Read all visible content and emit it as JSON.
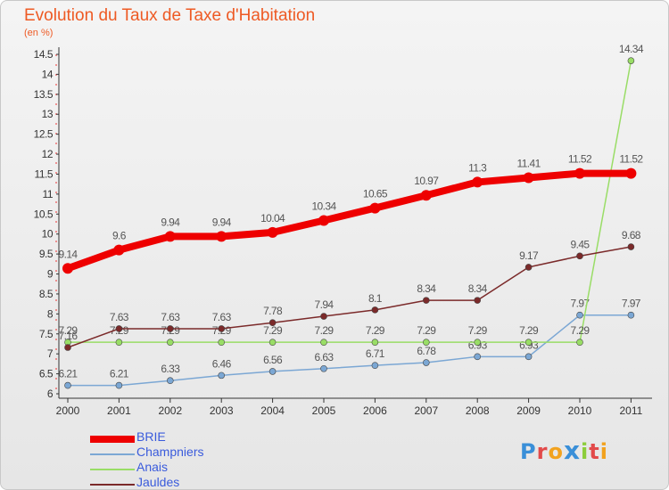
{
  "header": {
    "title": "Evolution du Taux de Taxe d'Habitation",
    "subtitle": "(en %)"
  },
  "chart_data": {
    "type": "line",
    "title": "Evolution du Taux de Taxe d'Habitation",
    "ylabel": "(en %)",
    "xlabel": "",
    "x": [
      "2000",
      "2001",
      "2002",
      "2003",
      "2004",
      "2005",
      "2006",
      "2007",
      "2008",
      "2009",
      "2010",
      "2011"
    ],
    "ylim": [
      6,
      14.5
    ],
    "yticks": [
      "6",
      "6.5",
      "7",
      "7.5",
      "8",
      "8.5",
      "9",
      "9.5",
      "10",
      "10.5",
      "11",
      "11.5",
      "12",
      "12.5",
      "13",
      "13.5",
      "14",
      "14.5"
    ],
    "grid": false,
    "legend": "bottom-left",
    "series": [
      {
        "name": "BRIE",
        "color": "#ee0000",
        "values": [
          9.14,
          9.6,
          9.94,
          9.94,
          10.04,
          10.34,
          10.65,
          10.97,
          11.3,
          11.41,
          11.52,
          11.52
        ],
        "labels": [
          "9.14",
          "9.6",
          "9.94",
          "9.94",
          "10.04",
          "10.34",
          "10.65",
          "10.97",
          "11.3",
          "11.41",
          "11.52",
          "11.52"
        ]
      },
      {
        "name": "Champniers",
        "color": "#7ba7d4",
        "values": [
          6.21,
          6.21,
          6.33,
          6.46,
          6.56,
          6.63,
          6.71,
          6.78,
          6.93,
          6.93,
          7.97,
          7.97
        ],
        "labels": [
          "6.21",
          "6.21",
          "6.33",
          "6.46",
          "6.56",
          "6.63",
          "6.71",
          "6.78",
          "6.93",
          "6.93",
          "7.97",
          "7.97"
        ]
      },
      {
        "name": "Anais",
        "color": "#99dd66",
        "values": [
          7.29,
          7.29,
          7.29,
          7.29,
          7.29,
          7.29,
          7.29,
          7.29,
          7.29,
          7.29,
          7.29,
          14.34
        ],
        "labels": [
          "7.29",
          "7.29",
          "7.29",
          "7.29",
          "7.29",
          "7.29",
          "7.29",
          "7.29",
          "7.29",
          "7.29",
          "7.29",
          "14.34"
        ]
      },
      {
        "name": "Jauldes",
        "color": "#7b2a2a",
        "values": [
          7.16,
          7.63,
          7.63,
          7.63,
          7.78,
          7.94,
          8.1,
          8.34,
          8.34,
          9.17,
          9.45,
          9.68
        ],
        "labels": [
          "7.16",
          "7.63",
          "7.63",
          "7.63",
          "7.78",
          "7.94",
          "8.1",
          "8.34",
          "8.34",
          "9.17",
          "9.45",
          "9.68"
        ]
      }
    ]
  },
  "logo": {
    "text": "Proxiti",
    "colors": [
      "#3a8fd8",
      "#e24a4a",
      "#f2a21e",
      "#3a8fd8",
      "#8ccd3b",
      "#e24a4a",
      "#f2a21e"
    ]
  }
}
